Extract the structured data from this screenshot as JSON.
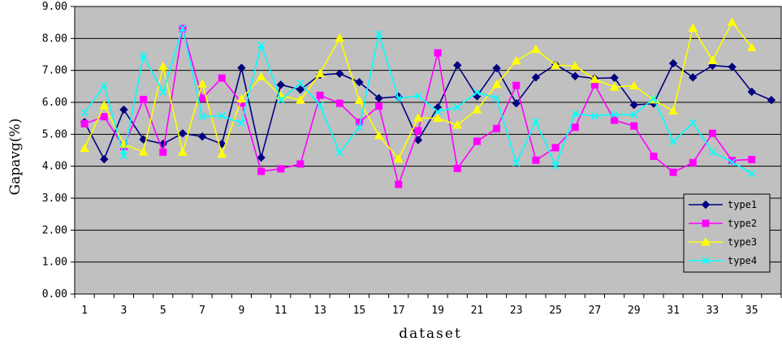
{
  "chart_data": {
    "type": "line",
    "xlabel": "dataset",
    "ylabel": "Gapavg(%)",
    "ylim": [
      0,
      9
    ],
    "y_ticks": [
      "0.00",
      "1.00",
      "2.00",
      "3.00",
      "4.00",
      "5.00",
      "6.00",
      "7.00",
      "8.00",
      "9.00"
    ],
    "x": [
      1,
      2,
      3,
      4,
      5,
      6,
      7,
      8,
      9,
      10,
      11,
      12,
      13,
      14,
      15,
      16,
      17,
      18,
      19,
      20,
      21,
      22,
      23,
      24,
      25,
      26,
      27,
      28,
      29,
      30,
      31,
      32,
      33,
      34,
      35,
      36
    ],
    "x_tick_labels": [
      "1",
      "3",
      "5",
      "7",
      "9",
      "11",
      "13",
      "15",
      "17",
      "19",
      "21",
      "23",
      "25",
      "27",
      "29",
      "31",
      "33",
      "35"
    ],
    "grid": "horizontal",
    "plot_background": "#c0c0c0",
    "legend_position": "right",
    "series": [
      {
        "name": "type1",
        "color": "#000080",
        "marker": "diamond",
        "values": [
          5.38,
          4.22,
          5.77,
          4.84,
          4.7,
          5.03,
          4.93,
          4.7,
          7.08,
          4.27,
          6.55,
          6.4,
          6.86,
          6.9,
          6.63,
          6.13,
          6.18,
          4.82,
          5.84,
          7.16,
          6.19,
          7.07,
          5.97,
          6.78,
          7.18,
          6.82,
          6.75,
          6.77,
          5.92,
          5.96,
          7.22,
          6.78,
          7.15,
          7.11,
          6.33,
          6.07
        ]
      },
      {
        "name": "type2",
        "color": "#ff00ff",
        "marker": "square",
        "values": [
          5.33,
          5.55,
          4.61,
          6.09,
          4.44,
          8.31,
          6.13,
          6.76,
          5.98,
          3.84,
          3.92,
          4.07,
          6.22,
          5.97,
          5.38,
          5.88,
          3.43,
          5.11,
          7.55,
          3.93,
          4.78,
          5.18,
          6.53,
          4.19,
          4.58,
          5.22,
          6.55,
          5.44,
          5.26,
          4.31,
          3.81,
          4.11,
          5.03,
          4.18,
          4.21,
          null
        ]
      },
      {
        "name": "type3",
        "color": "#ffff00",
        "marker": "triangle",
        "values": [
          4.56,
          5.9,
          4.69,
          4.45,
          7.12,
          4.44,
          6.58,
          4.38,
          6.11,
          6.8,
          6.21,
          6.07,
          6.9,
          8.01,
          6.06,
          4.96,
          4.23,
          5.51,
          5.5,
          5.29,
          5.77,
          6.56,
          7.3,
          7.66,
          7.16,
          7.14,
          6.72,
          6.48,
          6.52,
          6.08,
          5.73,
          8.33,
          7.31,
          8.51,
          7.72,
          null
        ]
      },
      {
        "name": "type4",
        "color": "#00ffff",
        "marker": "x",
        "values": [
          5.67,
          6.52,
          4.33,
          7.46,
          6.32,
          8.32,
          5.55,
          5.58,
          5.35,
          7.79,
          6.07,
          6.6,
          5.91,
          4.43,
          5.22,
          8.14,
          6.12,
          6.2,
          5.71,
          5.85,
          6.31,
          6.13,
          4.1,
          5.4,
          4.02,
          5.64,
          5.57,
          5.62,
          5.61,
          6.12,
          4.77,
          5.36,
          4.44,
          4.13,
          3.77,
          null
        ]
      }
    ]
  }
}
